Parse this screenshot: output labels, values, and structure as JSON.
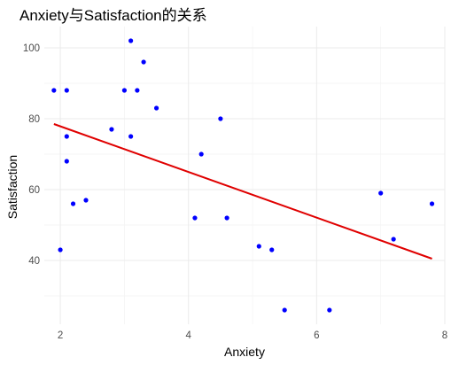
{
  "chart_data": {
    "type": "scatter",
    "title": "Anxiety与Satisfaction的关系",
    "xlabel": "Anxiety",
    "ylabel": "Satisfaction",
    "xlim": [
      1.75,
      8.0
    ],
    "ylim": [
      22,
      106
    ],
    "xticks": [
      2,
      4,
      6,
      8
    ],
    "yticks": [
      40,
      60,
      80,
      100
    ],
    "xticks_minor": [
      3,
      5,
      7
    ],
    "yticks_minor": [
      30,
      50,
      70,
      90
    ],
    "grid": true,
    "legend": "none",
    "point_color": "#0000ff",
    "line_color": "#e00000",
    "points": [
      {
        "x": 1.9,
        "y": 88
      },
      {
        "x": 2.0,
        "y": 43
      },
      {
        "x": 2.1,
        "y": 88
      },
      {
        "x": 2.1,
        "y": 75
      },
      {
        "x": 2.1,
        "y": 68
      },
      {
        "x": 2.2,
        "y": 56
      },
      {
        "x": 2.4,
        "y": 57
      },
      {
        "x": 2.8,
        "y": 77
      },
      {
        "x": 3.0,
        "y": 88
      },
      {
        "x": 3.1,
        "y": 102
      },
      {
        "x": 3.1,
        "y": 75
      },
      {
        "x": 3.2,
        "y": 88
      },
      {
        "x": 3.3,
        "y": 96
      },
      {
        "x": 3.5,
        "y": 83
      },
      {
        "x": 4.1,
        "y": 52
      },
      {
        "x": 4.2,
        "y": 70
      },
      {
        "x": 4.5,
        "y": 80
      },
      {
        "x": 4.6,
        "y": 52
      },
      {
        "x": 5.1,
        "y": 44
      },
      {
        "x": 5.3,
        "y": 43
      },
      {
        "x": 5.5,
        "y": 26
      },
      {
        "x": 6.2,
        "y": 26
      },
      {
        "x": 7.0,
        "y": 59
      },
      {
        "x": 7.2,
        "y": 46
      },
      {
        "x": 7.8,
        "y": 56
      }
    ],
    "trend_line": {
      "x": [
        1.9,
        7.8
      ],
      "y": [
        78.5,
        40.5
      ]
    }
  }
}
